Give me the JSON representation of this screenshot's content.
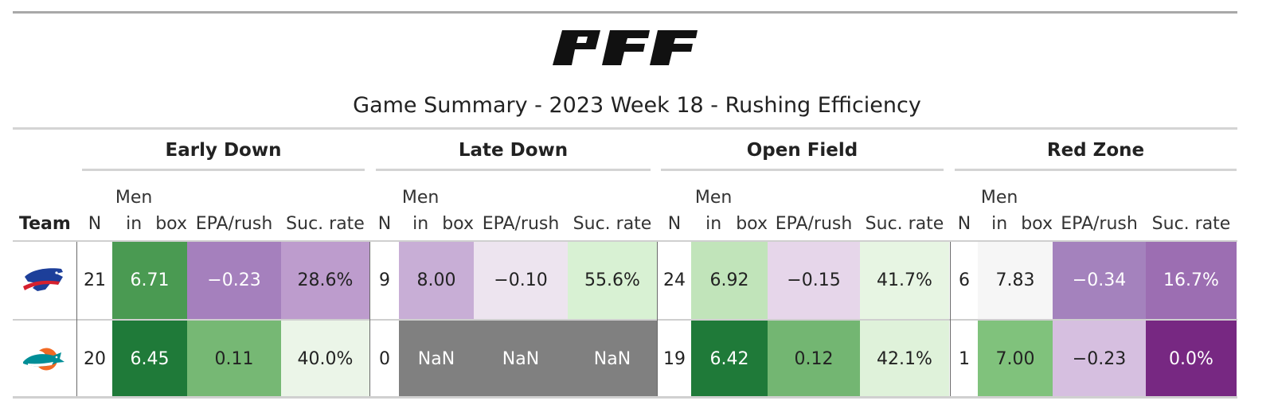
{
  "header": {
    "logo_text": "PFF",
    "title": "Game Summary - 2023 Week 18 - Rushing Efficiency"
  },
  "groups": [
    {
      "label": "Early Down"
    },
    {
      "label": "Late Down"
    },
    {
      "label": "Open Field"
    },
    {
      "label": "Red Zone"
    }
  ],
  "columns": {
    "team": "Team",
    "n": "N",
    "men_in_box_line1": "Men in",
    "men_in_box_line2": "box",
    "epa": "EPA/rush",
    "suc": "Suc. rate"
  },
  "rows": [
    {
      "team_icon": "bills-logo-icon",
      "cells": [
        {
          "text": "21",
          "bg": "#ffffff",
          "fg": "#222222"
        },
        {
          "text": "6.71",
          "bg": "#4a9a52",
          "fg": "#ffffff"
        },
        {
          "text": "−0.23",
          "bg": "#a580bd",
          "fg": "#ffffff"
        },
        {
          "text": "28.6%",
          "bg": "#bd9ccd",
          "fg": "#222222"
        },
        {
          "text": "9",
          "bg": "#ffffff",
          "fg": "#222222"
        },
        {
          "text": "8.00",
          "bg": "#c8aed6",
          "fg": "#222222"
        },
        {
          "text": "−0.10",
          "bg": "#ede4ef",
          "fg": "#222222"
        },
        {
          "text": "55.6%",
          "bg": "#d8f1d3",
          "fg": "#222222"
        },
        {
          "text": "24",
          "bg": "#ffffff",
          "fg": "#222222"
        },
        {
          "text": "6.92",
          "bg": "#c1e4ba",
          "fg": "#222222"
        },
        {
          "text": "−0.15",
          "bg": "#e6d6ea",
          "fg": "#222222"
        },
        {
          "text": "41.7%",
          "bg": "#e7f5e3",
          "fg": "#222222"
        },
        {
          "text": "6",
          "bg": "#ffffff",
          "fg": "#222222"
        },
        {
          "text": "7.83",
          "bg": "#f6f6f6",
          "fg": "#222222"
        },
        {
          "text": "−0.34",
          "bg": "#a482bd",
          "fg": "#ffffff"
        },
        {
          "text": "16.7%",
          "bg": "#9c6eb2",
          "fg": "#ffffff"
        }
      ]
    },
    {
      "team_icon": "dolphins-logo-icon",
      "cells": [
        {
          "text": "20",
          "bg": "#ffffff",
          "fg": "#222222"
        },
        {
          "text": "6.45",
          "bg": "#1f7a39",
          "fg": "#ffffff"
        },
        {
          "text": "0.11",
          "bg": "#76b874",
          "fg": "#222222"
        },
        {
          "text": "40.0%",
          "bg": "#ebf5e8",
          "fg": "#222222"
        },
        {
          "text": "0",
          "bg": "#ffffff",
          "fg": "#222222"
        },
        {
          "text": "NaN",
          "bg": "#808080",
          "fg": "#ffffff"
        },
        {
          "text": "NaN",
          "bg": "#808080",
          "fg": "#ffffff"
        },
        {
          "text": "NaN",
          "bg": "#808080",
          "fg": "#ffffff"
        },
        {
          "text": "19",
          "bg": "#ffffff",
          "fg": "#222222"
        },
        {
          "text": "6.42",
          "bg": "#1f7a39",
          "fg": "#ffffff"
        },
        {
          "text": "0.12",
          "bg": "#73b672",
          "fg": "#222222"
        },
        {
          "text": "42.1%",
          "bg": "#dff2da",
          "fg": "#222222"
        },
        {
          "text": "1",
          "bg": "#ffffff",
          "fg": "#222222"
        },
        {
          "text": "7.00",
          "bg": "#80c27c",
          "fg": "#222222"
        },
        {
          "text": "−0.23",
          "bg": "#d6bfe0",
          "fg": "#222222"
        },
        {
          "text": "0.0%",
          "bg": "#772882",
          "fg": "#ffffff"
        }
      ]
    }
  ]
}
